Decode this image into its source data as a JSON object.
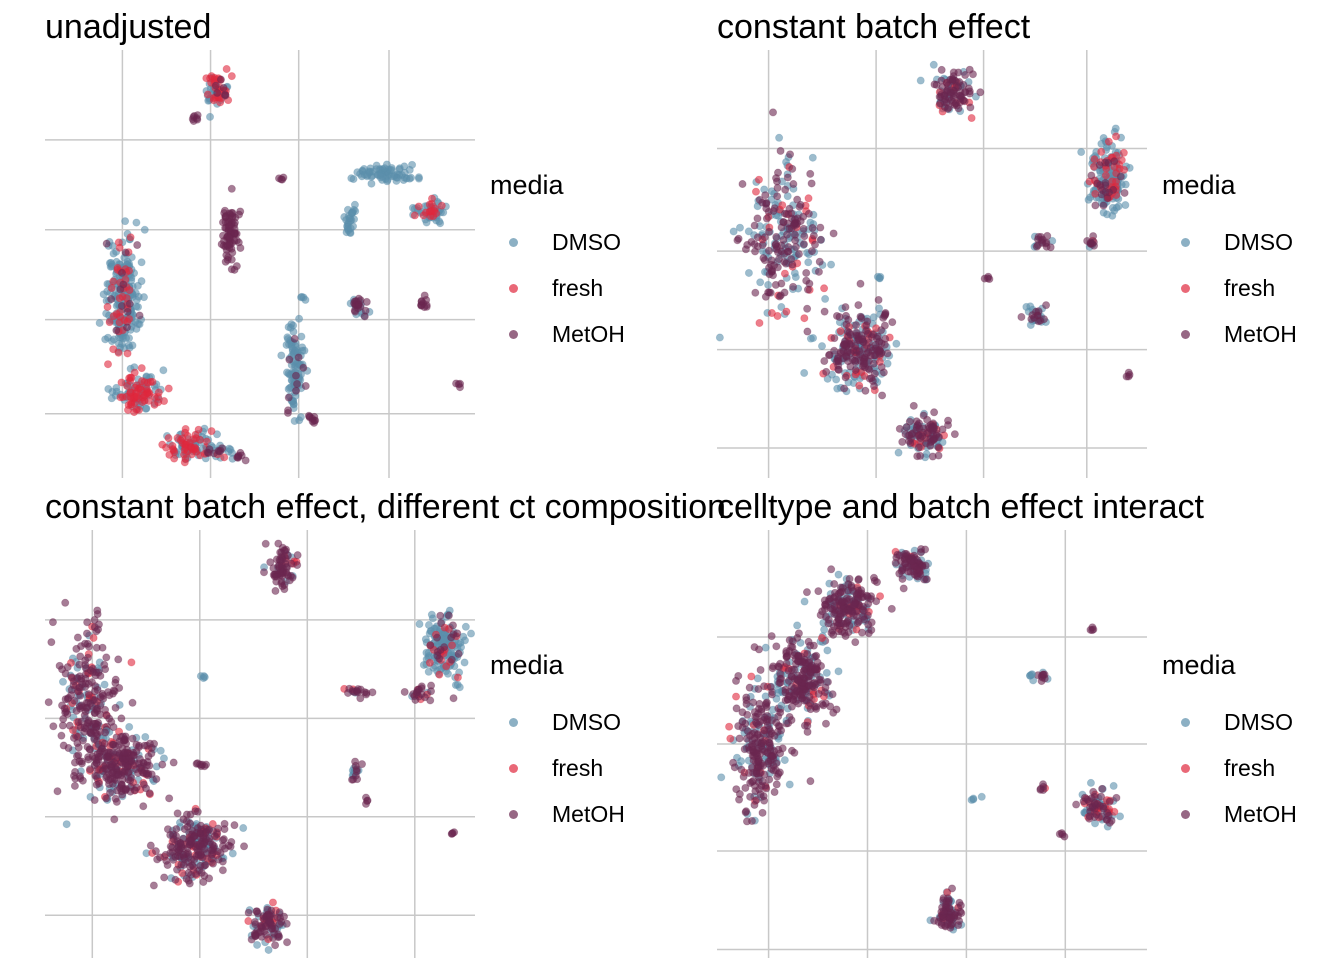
{
  "legend": {
    "title": "media",
    "entries": [
      {
        "label": "DMSO",
        "color": "#5b8fab"
      },
      {
        "label": "fresh",
        "color": "#e0283d"
      },
      {
        "label": "MetOH",
        "color": "#6b2750"
      }
    ]
  },
  "chart_data": [
    {
      "type": "scatter",
      "title": "unadjusted",
      "xlabel": "",
      "ylabel": "",
      "grid": true,
      "axis_ticks_labeled": false,
      "xlim": [
        0,
        1
      ],
      "ylim": [
        0,
        1
      ],
      "legend_position": "right",
      "clusters": [
        {
          "name": "c1",
          "x": 0.18,
          "y": 0.42,
          "rx": 0.035,
          "ry": 0.12,
          "composition": {
            "DMSO": 0.8,
            "fresh": 0.15,
            "MetOH": 0.05
          }
        },
        {
          "name": "c2",
          "x": 0.22,
          "y": 0.2,
          "rx": 0.05,
          "ry": 0.04,
          "composition": {
            "DMSO": 0.5,
            "fresh": 0.5,
            "MetOH": 0.0
          }
        },
        {
          "name": "c3",
          "x": 0.33,
          "y": 0.08,
          "rx": 0.05,
          "ry": 0.03,
          "composition": {
            "DMSO": 0.5,
            "fresh": 0.5,
            "MetOH": 0.0
          }
        },
        {
          "name": "c4",
          "x": 0.4,
          "y": 0.06,
          "rx": 0.03,
          "ry": 0.015,
          "composition": {
            "DMSO": 0.6,
            "fresh": 0.1,
            "MetOH": 0.3
          }
        },
        {
          "name": "c5",
          "x": 0.45,
          "y": 0.05,
          "rx": 0.012,
          "ry": 0.01,
          "composition": {
            "DMSO": 0.0,
            "fresh": 0.0,
            "MetOH": 1.0
          }
        },
        {
          "name": "c6",
          "x": 0.4,
          "y": 0.91,
          "rx": 0.025,
          "ry": 0.04,
          "composition": {
            "DMSO": 0.4,
            "fresh": 0.5,
            "MetOH": 0.1
          }
        },
        {
          "name": "c7",
          "x": 0.35,
          "y": 0.84,
          "rx": 0.012,
          "ry": 0.01,
          "composition": {
            "DMSO": 0.0,
            "fresh": 0.0,
            "MetOH": 1.0
          }
        },
        {
          "name": "c8",
          "x": 0.43,
          "y": 0.57,
          "rx": 0.018,
          "ry": 0.07,
          "composition": {
            "DMSO": 0.0,
            "fresh": 0.0,
            "MetOH": 1.0
          }
        },
        {
          "name": "c9",
          "x": 0.58,
          "y": 0.25,
          "rx": 0.02,
          "ry": 0.09,
          "composition": {
            "DMSO": 0.9,
            "fresh": 0.0,
            "MetOH": 0.1
          }
        },
        {
          "name": "c10",
          "x": 0.62,
          "y": 0.14,
          "rx": 0.015,
          "ry": 0.01,
          "composition": {
            "DMSO": 0.0,
            "fresh": 0.0,
            "MetOH": 1.0
          }
        },
        {
          "name": "c11",
          "x": 0.79,
          "y": 0.71,
          "rx": 0.06,
          "ry": 0.02,
          "composition": {
            "DMSO": 1.0,
            "fresh": 0.0,
            "MetOH": 0.0
          }
        },
        {
          "name": "c12",
          "x": 0.9,
          "y": 0.62,
          "rx": 0.035,
          "ry": 0.025,
          "composition": {
            "DMSO": 0.7,
            "fresh": 0.3,
            "MetOH": 0.0
          }
        },
        {
          "name": "c13",
          "x": 0.73,
          "y": 0.4,
          "rx": 0.025,
          "ry": 0.02,
          "composition": {
            "DMSO": 0.4,
            "fresh": 0.0,
            "MetOH": 0.6
          }
        },
        {
          "name": "c14",
          "x": 0.71,
          "y": 0.6,
          "rx": 0.015,
          "ry": 0.03,
          "composition": {
            "DMSO": 1.0,
            "fresh": 0.0,
            "MetOH": 0.0
          }
        },
        {
          "name": "c15",
          "x": 0.88,
          "y": 0.41,
          "rx": 0.012,
          "ry": 0.015,
          "composition": {
            "DMSO": 0.0,
            "fresh": 0.0,
            "MetOH": 1.0
          }
        },
        {
          "name": "c16",
          "x": 0.55,
          "y": 0.7,
          "rx": 0.006,
          "ry": 0.006,
          "composition": {
            "DMSO": 0.0,
            "fresh": 0.0,
            "MetOH": 1.0
          }
        },
        {
          "name": "c17",
          "x": 0.6,
          "y": 0.42,
          "rx": 0.006,
          "ry": 0.006,
          "composition": {
            "DMSO": 1.0,
            "fresh": 0.0,
            "MetOH": 0.0
          }
        },
        {
          "name": "c18",
          "x": 0.96,
          "y": 0.22,
          "rx": 0.006,
          "ry": 0.006,
          "composition": {
            "DMSO": 0.0,
            "fresh": 0.0,
            "MetOH": 1.0
          }
        }
      ]
    },
    {
      "type": "scatter",
      "title": "constant batch effect",
      "xlabel": "",
      "ylabel": "",
      "grid": true,
      "axis_ticks_labeled": false,
      "xlim": [
        0,
        1
      ],
      "ylim": [
        0,
        1
      ],
      "legend_position": "right",
      "clusters": [
        {
          "name": "c1",
          "x": 0.15,
          "y": 0.55,
          "rx": 0.08,
          "ry": 0.15,
          "composition": {
            "DMSO": 0.4,
            "fresh": 0.1,
            "MetOH": 0.5
          }
        },
        {
          "name": "c2",
          "x": 0.33,
          "y": 0.3,
          "rx": 0.07,
          "ry": 0.08,
          "composition": {
            "DMSO": 0.4,
            "fresh": 0.1,
            "MetOH": 0.5
          }
        },
        {
          "name": "c3",
          "x": 0.48,
          "y": 0.1,
          "rx": 0.05,
          "ry": 0.04,
          "composition": {
            "DMSO": 0.4,
            "fresh": 0.1,
            "MetOH": 0.5
          }
        },
        {
          "name": "c4",
          "x": 0.55,
          "y": 0.9,
          "rx": 0.04,
          "ry": 0.045,
          "composition": {
            "DMSO": 0.3,
            "fresh": 0.1,
            "MetOH": 0.6
          }
        },
        {
          "name": "c5",
          "x": 0.91,
          "y": 0.7,
          "rx": 0.04,
          "ry": 0.08,
          "composition": {
            "DMSO": 0.7,
            "fresh": 0.2,
            "MetOH": 0.1
          }
        },
        {
          "name": "c6",
          "x": 0.76,
          "y": 0.55,
          "rx": 0.025,
          "ry": 0.012,
          "composition": {
            "DMSO": 0.3,
            "fresh": 0.0,
            "MetOH": 0.7
          }
        },
        {
          "name": "c7",
          "x": 0.87,
          "y": 0.55,
          "rx": 0.012,
          "ry": 0.015,
          "composition": {
            "DMSO": 0.2,
            "fresh": 0.1,
            "MetOH": 0.7
          }
        },
        {
          "name": "c8",
          "x": 0.74,
          "y": 0.38,
          "rx": 0.025,
          "ry": 0.02,
          "composition": {
            "DMSO": 0.6,
            "fresh": 0.0,
            "MetOH": 0.4
          }
        },
        {
          "name": "c9",
          "x": 0.63,
          "y": 0.47,
          "rx": 0.006,
          "ry": 0.006,
          "composition": {
            "DMSO": 0.0,
            "fresh": 0.0,
            "MetOH": 1.0
          }
        },
        {
          "name": "c10",
          "x": 0.38,
          "y": 0.47,
          "rx": 0.006,
          "ry": 0.006,
          "composition": {
            "DMSO": 1.0,
            "fresh": 0.0,
            "MetOH": 0.0
          }
        },
        {
          "name": "c11",
          "x": 0.39,
          "y": 0.38,
          "rx": 0.01,
          "ry": 0.008,
          "composition": {
            "DMSO": 0.0,
            "fresh": 0.0,
            "MetOH": 1.0
          }
        },
        {
          "name": "c12",
          "x": 0.96,
          "y": 0.24,
          "rx": 0.006,
          "ry": 0.006,
          "composition": {
            "DMSO": 0.0,
            "fresh": 0.0,
            "MetOH": 1.0
          }
        }
      ]
    },
    {
      "type": "scatter",
      "title": "constant batch effect, different ct composition",
      "xlabel": "",
      "ylabel": "",
      "grid": true,
      "axis_ticks_labeled": false,
      "xlim": [
        0,
        1
      ],
      "ylim": [
        0,
        1
      ],
      "legend_position": "right",
      "clusters": [
        {
          "name": "c1",
          "x": 0.1,
          "y": 0.6,
          "rx": 0.06,
          "ry": 0.15,
          "composition": {
            "DMSO": 0.2,
            "fresh": 0.1,
            "MetOH": 0.7
          }
        },
        {
          "name": "c2",
          "x": 0.18,
          "y": 0.45,
          "rx": 0.07,
          "ry": 0.07,
          "composition": {
            "DMSO": 0.2,
            "fresh": 0.1,
            "MetOH": 0.7
          }
        },
        {
          "name": "c3",
          "x": 0.35,
          "y": 0.26,
          "rx": 0.07,
          "ry": 0.07,
          "composition": {
            "DMSO": 0.3,
            "fresh": 0.1,
            "MetOH": 0.6
          }
        },
        {
          "name": "c4",
          "x": 0.52,
          "y": 0.08,
          "rx": 0.04,
          "ry": 0.04,
          "composition": {
            "DMSO": 0.3,
            "fresh": 0.1,
            "MetOH": 0.6
          }
        },
        {
          "name": "c5",
          "x": 0.55,
          "y": 0.91,
          "rx": 0.03,
          "ry": 0.04,
          "composition": {
            "DMSO": 0.1,
            "fresh": 0.1,
            "MetOH": 0.8
          }
        },
        {
          "name": "c6",
          "x": 0.93,
          "y": 0.72,
          "rx": 0.04,
          "ry": 0.07,
          "composition": {
            "DMSO": 0.8,
            "fresh": 0.1,
            "MetOH": 0.1
          }
        },
        {
          "name": "c7",
          "x": 0.73,
          "y": 0.62,
          "rx": 0.03,
          "ry": 0.01,
          "composition": {
            "DMSO": 0.1,
            "fresh": 0.1,
            "MetOH": 0.8
          }
        },
        {
          "name": "c8",
          "x": 0.87,
          "y": 0.62,
          "rx": 0.025,
          "ry": 0.015,
          "composition": {
            "DMSO": 0.1,
            "fresh": 0.2,
            "MetOH": 0.7
          }
        },
        {
          "name": "c9",
          "x": 0.72,
          "y": 0.44,
          "rx": 0.015,
          "ry": 0.02,
          "composition": {
            "DMSO": 0.5,
            "fresh": 0.0,
            "MetOH": 0.5
          }
        },
        {
          "name": "c10",
          "x": 0.75,
          "y": 0.37,
          "rx": 0.006,
          "ry": 0.006,
          "composition": {
            "DMSO": 0.0,
            "fresh": 0.0,
            "MetOH": 1.0
          }
        },
        {
          "name": "c11",
          "x": 0.95,
          "y": 0.29,
          "rx": 0.006,
          "ry": 0.006,
          "composition": {
            "DMSO": 0.0,
            "fresh": 0.0,
            "MetOH": 1.0
          }
        },
        {
          "name": "c12",
          "x": 0.37,
          "y": 0.66,
          "rx": 0.006,
          "ry": 0.006,
          "composition": {
            "DMSO": 1.0,
            "fresh": 0.0,
            "MetOH": 0.0
          }
        },
        {
          "name": "c13",
          "x": 0.36,
          "y": 0.45,
          "rx": 0.015,
          "ry": 0.008,
          "composition": {
            "DMSO": 0.0,
            "fresh": 0.0,
            "MetOH": 1.0
          }
        }
      ]
    },
    {
      "type": "scatter",
      "title": "celltype and batch effect interact",
      "xlabel": "",
      "ylabel": "",
      "grid": true,
      "axis_ticks_labeled": false,
      "xlim": [
        0,
        1
      ],
      "ylim": [
        0,
        1
      ],
      "legend_position": "right",
      "clusters": [
        {
          "name": "c1",
          "x": 0.1,
          "y": 0.5,
          "rx": 0.06,
          "ry": 0.14,
          "composition": {
            "DMSO": 0.25,
            "fresh": 0.05,
            "MetOH": 0.7
          }
        },
        {
          "name": "c2",
          "x": 0.2,
          "y": 0.65,
          "rx": 0.06,
          "ry": 0.08,
          "composition": {
            "DMSO": 0.3,
            "fresh": 0.05,
            "MetOH": 0.65
          }
        },
        {
          "name": "c3",
          "x": 0.3,
          "y": 0.82,
          "rx": 0.06,
          "ry": 0.06,
          "composition": {
            "DMSO": 0.3,
            "fresh": 0.05,
            "MetOH": 0.65
          }
        },
        {
          "name": "c4",
          "x": 0.45,
          "y": 0.92,
          "rx": 0.04,
          "ry": 0.04,
          "composition": {
            "DMSO": 0.3,
            "fresh": 0.05,
            "MetOH": 0.65
          }
        },
        {
          "name": "c5",
          "x": 0.54,
          "y": 0.1,
          "rx": 0.03,
          "ry": 0.045,
          "composition": {
            "DMSO": 0.3,
            "fresh": 0.05,
            "MetOH": 0.65
          }
        },
        {
          "name": "c6",
          "x": 0.89,
          "y": 0.35,
          "rx": 0.04,
          "ry": 0.035,
          "composition": {
            "DMSO": 0.4,
            "fresh": 0.2,
            "MetOH": 0.4
          }
        },
        {
          "name": "c7",
          "x": 0.76,
          "y": 0.66,
          "rx": 0.015,
          "ry": 0.012,
          "composition": {
            "DMSO": 0.3,
            "fresh": 0.0,
            "MetOH": 0.7
          }
        },
        {
          "name": "c8",
          "x": 0.76,
          "y": 0.4,
          "rx": 0.008,
          "ry": 0.012,
          "composition": {
            "DMSO": 0.0,
            "fresh": 0.1,
            "MetOH": 0.9
          }
        },
        {
          "name": "c9",
          "x": 0.6,
          "y": 0.37,
          "rx": 0.01,
          "ry": 0.006,
          "composition": {
            "DMSO": 1.0,
            "fresh": 0.0,
            "MetOH": 0.0
          }
        },
        {
          "name": "c10",
          "x": 0.87,
          "y": 0.77,
          "rx": 0.006,
          "ry": 0.006,
          "composition": {
            "DMSO": 0.0,
            "fresh": 0.0,
            "MetOH": 1.0
          }
        },
        {
          "name": "c11",
          "x": 0.73,
          "y": 0.66,
          "rx": 0.006,
          "ry": 0.006,
          "composition": {
            "DMSO": 1.0,
            "fresh": 0.0,
            "MetOH": 0.0
          }
        },
        {
          "name": "c12",
          "x": 0.8,
          "y": 0.29,
          "rx": 0.006,
          "ry": 0.006,
          "composition": {
            "DMSO": 0.0,
            "fresh": 0.0,
            "MetOH": 1.0
          }
        }
      ]
    }
  ]
}
